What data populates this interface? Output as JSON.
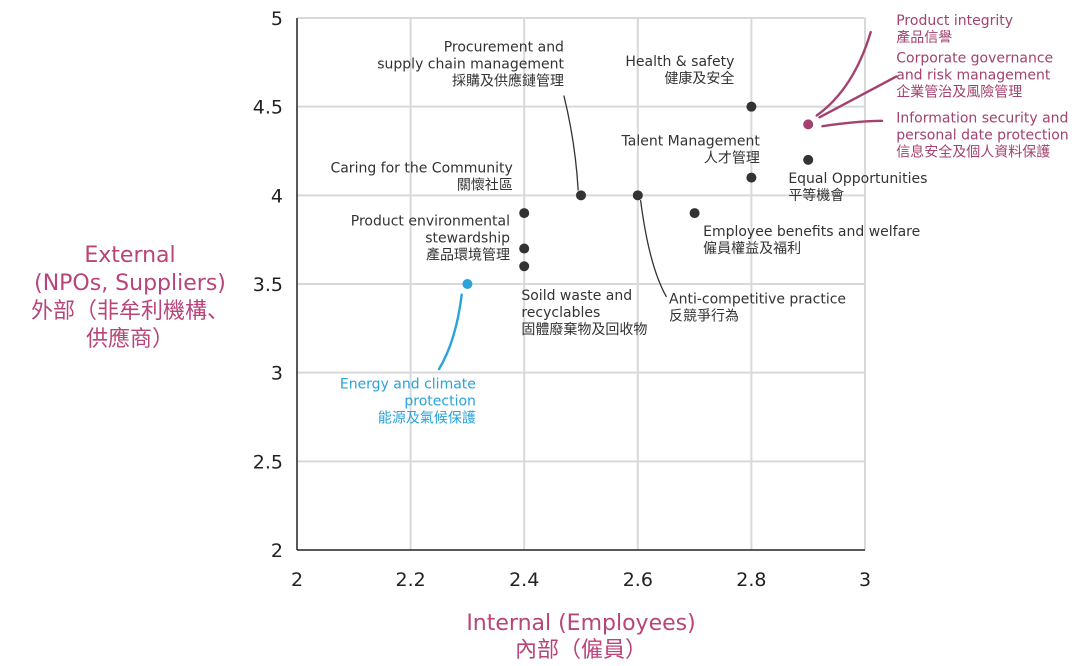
{
  "chart_data": {
    "type": "scatter",
    "title": "",
    "xlabel": "Internal (Employees)",
    "xlabel_zh": "內部（僱員）",
    "ylabel_lines": [
      "External",
      "(NPOs, Suppliers)",
      "外部（非牟利機構、",
      "供應商）"
    ],
    "xlim": [
      2,
      3
    ],
    "ylim": [
      2,
      5
    ],
    "x_ticks": [
      2,
      2.2,
      2.4,
      2.6,
      2.8,
      3
    ],
    "y_ticks": [
      2,
      2.5,
      3,
      3.5,
      4,
      4.5,
      5
    ],
    "x_tick_labels": [
      "2",
      "2.2",
      "2.4",
      "2.6",
      "2.8",
      "3"
    ],
    "y_tick_labels": [
      "2",
      "2.5",
      "3",
      "3.5",
      "4",
      "4.5",
      "5"
    ],
    "grid": true,
    "colors": {
      "point": "#333333",
      "highlight_pink": "#a3426f",
      "highlight_blue": "#29a3da",
      "axis_label": "#b8457a",
      "grid": "#d9d9d9",
      "text": "#333333"
    },
    "points": [
      {
        "x": 2.8,
        "y": 4.5,
        "color": "point"
      },
      {
        "x": 2.9,
        "y": 4.4,
        "color": "highlight_pink"
      },
      {
        "x": 2.9,
        "y": 4.2,
        "color": "point"
      },
      {
        "x": 2.8,
        "y": 4.1,
        "color": "point"
      },
      {
        "x": 2.5,
        "y": 4.0,
        "color": "point"
      },
      {
        "x": 2.6,
        "y": 4.0,
        "color": "point"
      },
      {
        "x": 2.7,
        "y": 3.9,
        "color": "point"
      },
      {
        "x": 2.4,
        "y": 3.9,
        "color": "point"
      },
      {
        "x": 2.4,
        "y": 3.7,
        "color": "point"
      },
      {
        "x": 2.4,
        "y": 3.6,
        "color": "point"
      },
      {
        "x": 2.3,
        "y": 3.5,
        "color": "highlight_blue"
      }
    ],
    "annotations": [
      {
        "lines": [
          "Procurement and",
          "supply chain management",
          "採購及供應鏈管理"
        ],
        "color": "text",
        "anchor": "end",
        "x": 2.47,
        "y": 4.81
      },
      {
        "lines": [
          "Health & safety",
          "健康及安全"
        ],
        "color": "text",
        "anchor": "end",
        "x": 2.77,
        "y": 4.73
      },
      {
        "lines": [
          "Talent Management",
          "人才管理"
        ],
        "color": "text",
        "anchor": "end",
        "x": 2.815,
        "y": 4.28
      },
      {
        "lines": [
          "Caring for the Community",
          "關懷社區"
        ],
        "color": "text",
        "anchor": "end",
        "x": 2.38,
        "y": 4.13
      },
      {
        "lines": [
          "Equal Opportunities",
          "平等機會"
        ],
        "color": "text",
        "anchor": "start",
        "x": 2.865,
        "y": 4.07
      },
      {
        "lines": [
          "Product environmental",
          "stewardship",
          "產品環境管理"
        ],
        "color": "text",
        "anchor": "end",
        "x": 2.375,
        "y": 3.83
      },
      {
        "lines": [
          "Employee benefits and welfare",
          "僱員權益及福利"
        ],
        "color": "text",
        "anchor": "start",
        "x": 2.715,
        "y": 3.77
      },
      {
        "lines": [
          "Soild waste and",
          "recyclables",
          "固體廢棄物及回收物"
        ],
        "color": "text",
        "anchor": "start",
        "x": 2.395,
        "y": 3.41
      },
      {
        "lines": [
          "Anti-competitive practice",
          "反競爭行為"
        ],
        "color": "text",
        "anchor": "start",
        "x": 2.655,
        "y": 3.39
      },
      {
        "lines": [
          "Energy and climate",
          "protection",
          "能源及氣候保護"
        ],
        "color": "highlight_blue",
        "anchor": "end",
        "x": 2.315,
        "y": 2.91
      },
      {
        "lines": [
          "Product integrity",
          "產品信譽"
        ],
        "color": "highlight_pink",
        "anchor": "start",
        "x": 3.055,
        "y": 4.96
      },
      {
        "lines": [
          "Corporate governance",
          "and risk management",
          "企業管治及風險管理"
        ],
        "color": "highlight_pink",
        "anchor": "start",
        "x": 3.055,
        "y": 4.75
      },
      {
        "lines": [
          "Information security and",
          "personal date protection",
          "信息安全及個人資料保護"
        ],
        "color": "highlight_pink",
        "anchor": "start",
        "x": 3.055,
        "y": 4.41
      }
    ],
    "leader_lines": [
      {
        "from": [
          2.47,
          4.56
        ],
        "ctrl": [
          2.49,
          4.3
        ],
        "to": [
          2.495,
          4.03
        ],
        "color": "point"
      },
      {
        "from": [
          2.605,
          3.97
        ],
        "ctrl": [
          2.62,
          3.6
        ],
        "to": [
          2.65,
          3.43
        ],
        "color": "point"
      },
      {
        "from": [
          2.29,
          3.44
        ],
        "ctrl": [
          2.28,
          3.18
        ],
        "to": [
          2.25,
          3.02
        ],
        "color": "highlight_blue"
      },
      {
        "from": [
          2.915,
          4.45
        ],
        "ctrl": [
          2.98,
          4.6
        ],
        "to": [
          3.01,
          4.92
        ],
        "color": "highlight_pink"
      },
      {
        "from": [
          2.92,
          4.44
        ],
        "ctrl": [
          2.985,
          4.55
        ],
        "to": [
          3.055,
          4.67
        ],
        "color": "highlight_pink"
      },
      {
        "from": [
          2.925,
          4.39
        ],
        "ctrl": [
          2.99,
          4.42
        ],
        "to": [
          3.03,
          4.42
        ],
        "color": "highlight_pink"
      }
    ]
  }
}
